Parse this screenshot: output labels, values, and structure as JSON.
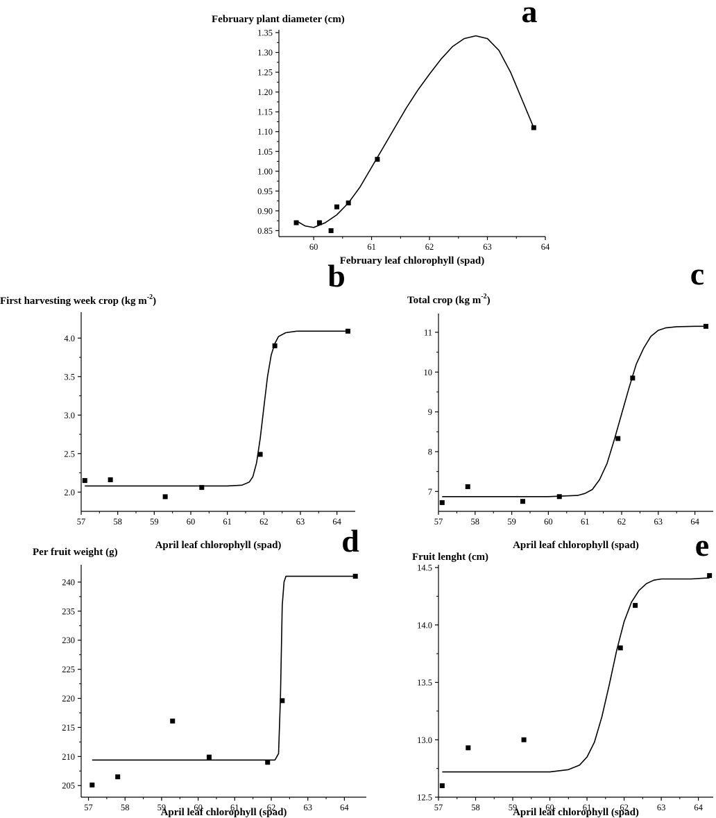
{
  "chart_data": [
    {
      "panel_label": "a",
      "type": "scatter",
      "title": "",
      "ylabel": "February plant diameter (cm)",
      "xlabel": "February leaf chlorophyll (spad)",
      "xlim": [
        59.4,
        64.0
      ],
      "ylim": [
        0.835,
        1.35
      ],
      "x_ticks": [
        60,
        61,
        62,
        63,
        64
      ],
      "x_tick_labels": [
        "60",
        "61",
        "62",
        "63",
        "64"
      ],
      "y_ticks": [
        0.85,
        0.9,
        0.95,
        1.0,
        1.05,
        1.1,
        1.15,
        1.2,
        1.25,
        1.3,
        1.35
      ],
      "y_tick_labels": [
        "0.85",
        "0.90",
        "0.95",
        "1.00",
        "1.05",
        "1.10",
        "1.15",
        "1.20",
        "1.25",
        "1.30",
        "1.35"
      ],
      "series": [
        {
          "mode": "markers",
          "x": [
            59.7,
            60.1,
            60.3,
            60.4,
            60.6,
            61.1,
            63.8
          ],
          "y": [
            0.87,
            0.87,
            0.85,
            0.91,
            0.92,
            1.03,
            1.11
          ]
        },
        {
          "mode": "line",
          "x": [
            59.7,
            59.85,
            60.0,
            60.2,
            60.4,
            60.6,
            60.8,
            61.0,
            61.2,
            61.4,
            61.6,
            61.8,
            62.0,
            62.2,
            62.4,
            62.6,
            62.8,
            63.0,
            63.2,
            63.4,
            63.6,
            63.8
          ],
          "y": [
            0.875,
            0.862,
            0.858,
            0.87,
            0.89,
            0.92,
            0.96,
            1.01,
            1.06,
            1.11,
            1.16,
            1.205,
            1.245,
            1.283,
            1.315,
            1.335,
            1.342,
            1.335,
            1.305,
            1.25,
            1.18,
            1.11
          ]
        }
      ]
    },
    {
      "panel_label": "b",
      "type": "scatter",
      "title": "",
      "ylabel": "First harvesting week crop (kg m",
      "ylabel_superscript": "-2",
      "ylabel_suffix": ")",
      "xlabel": "April leaf chlorophyll (spad)",
      "xlim": [
        57.0,
        64.5
      ],
      "ylim": [
        1.75,
        4.3
      ],
      "x_ticks": [
        57,
        58,
        59,
        60,
        61,
        62,
        63,
        64
      ],
      "x_tick_labels": [
        "57",
        "58",
        "59",
        "60",
        "61",
        "62",
        "63",
        "64"
      ],
      "y_ticks": [
        2.0,
        2.5,
        3.0,
        3.5,
        4.0
      ],
      "y_tick_labels": [
        "2.0",
        "2.5",
        "3.0",
        "3.5",
        "4.0"
      ],
      "series": [
        {
          "mode": "markers",
          "x": [
            57.1,
            57.8,
            59.3,
            60.3,
            61.9,
            62.3,
            64.3
          ],
          "y": [
            2.15,
            2.16,
            1.94,
            2.06,
            2.49,
            3.9,
            4.09
          ]
        },
        {
          "mode": "line",
          "x": [
            57.1,
            60.0,
            61.0,
            61.4,
            61.6,
            61.7,
            61.8,
            61.9,
            62.0,
            62.1,
            62.2,
            62.3,
            62.4,
            62.6,
            62.9,
            63.5,
            64.3
          ],
          "y": [
            2.08,
            2.08,
            2.08,
            2.09,
            2.13,
            2.2,
            2.38,
            2.7,
            3.1,
            3.5,
            3.78,
            3.93,
            4.02,
            4.07,
            4.09,
            4.09,
            4.09
          ]
        }
      ]
    },
    {
      "panel_label": "c",
      "type": "scatter",
      "title": "",
      "ylabel": "Total crop (kg m",
      "ylabel_superscript": "-2",
      "ylabel_suffix": ")",
      "xlabel": "April leaf chlorophyll (spad)",
      "xlim": [
        57.0,
        64.5
      ],
      "ylim": [
        6.5,
        11.4
      ],
      "x_ticks": [
        57,
        58,
        59,
        60,
        61,
        62,
        63,
        64
      ],
      "x_tick_labels": [
        "57",
        "58",
        "59",
        "60",
        "61",
        "62",
        "63",
        "64"
      ],
      "y_ticks": [
        7,
        8,
        9,
        10,
        11
      ],
      "y_tick_labels": [
        "7",
        "8",
        "9",
        "10",
        "11"
      ],
      "series": [
        {
          "mode": "markers",
          "x": [
            57.1,
            57.8,
            59.3,
            60.3,
            61.9,
            62.3,
            64.3
          ],
          "y": [
            6.72,
            7.12,
            6.75,
            6.87,
            8.33,
            9.85,
            11.15
          ]
        },
        {
          "mode": "line",
          "x": [
            57.1,
            60.0,
            60.8,
            61.0,
            61.2,
            61.4,
            61.6,
            61.8,
            62.0,
            62.2,
            62.4,
            62.6,
            62.8,
            63.0,
            63.2,
            63.5,
            64.0,
            64.3
          ],
          "y": [
            6.87,
            6.87,
            6.9,
            6.95,
            7.05,
            7.3,
            7.7,
            8.3,
            8.95,
            9.6,
            10.2,
            10.6,
            10.9,
            11.05,
            11.11,
            11.14,
            11.15,
            11.15
          ]
        }
      ]
    },
    {
      "panel_label": "d",
      "type": "scatter",
      "title": "",
      "ylabel": "Per fruit weight (g)",
      "xlabel": "April leaf chlorophyll (spad)",
      "xlim": [
        56.8,
        64.6
      ],
      "ylim": [
        203.0,
        242.5
      ],
      "x_ticks": [
        57,
        58,
        59,
        60,
        61,
        62,
        63,
        64
      ],
      "x_tick_labels": [
        "57",
        "58",
        "59",
        "60",
        "61",
        "62",
        "63",
        "64"
      ],
      "y_ticks": [
        205,
        210,
        215,
        220,
        225,
        230,
        235,
        240
      ],
      "y_tick_labels": [
        "205",
        "210",
        "215",
        "220",
        "225",
        "230",
        "235",
        "240"
      ],
      "series": [
        {
          "mode": "markers",
          "x": [
            57.1,
            57.8,
            59.3,
            60.3,
            61.9,
            62.3,
            64.3
          ],
          "y": [
            205.1,
            206.5,
            216.1,
            209.9,
            209.0,
            219.6,
            241.0
          ]
        },
        {
          "mode": "line",
          "x": [
            57.1,
            60.0,
            62.1,
            62.2,
            62.25,
            62.3,
            62.35,
            62.4,
            62.5,
            63.0,
            64.3
          ],
          "y": [
            209.4,
            209.4,
            209.4,
            210.5,
            220.0,
            236.0,
            240.0,
            241.0,
            241.0,
            241.0,
            241.0
          ]
        }
      ]
    },
    {
      "panel_label": "e",
      "type": "scatter",
      "title": "",
      "ylabel": "Fruit lenght (cm)",
      "xlabel": "April leaf chlorophyll (spad)",
      "xlim": [
        57.0,
        64.4
      ],
      "ylim": [
        12.5,
        14.5
      ],
      "x_ticks": [
        57,
        58,
        59,
        60,
        61,
        62,
        63,
        64
      ],
      "x_tick_labels": [
        "57",
        "58",
        "59",
        "60",
        "61",
        "62",
        "63",
        "64"
      ],
      "y_ticks": [
        12.5,
        13.0,
        13.5,
        14.0,
        14.5
      ],
      "y_tick_labels": [
        "12.5",
        "13.0",
        "13.5",
        "14.0",
        "14.5"
      ],
      "series": [
        {
          "mode": "markers",
          "x": [
            57.1,
            57.8,
            59.3,
            61.9,
            62.3,
            64.3
          ],
          "y": [
            12.6,
            12.93,
            13.0,
            13.8,
            14.17,
            14.43
          ]
        },
        {
          "mode": "line",
          "x": [
            57.1,
            60.0,
            60.5,
            60.8,
            61.0,
            61.2,
            61.4,
            61.6,
            61.8,
            62.0,
            62.2,
            62.4,
            62.6,
            62.8,
            63.0,
            63.3,
            63.8,
            64.3
          ],
          "y": [
            12.72,
            12.72,
            12.74,
            12.78,
            12.85,
            12.98,
            13.2,
            13.48,
            13.78,
            14.03,
            14.2,
            14.3,
            14.36,
            14.39,
            14.4,
            14.4,
            14.4,
            14.41
          ]
        }
      ]
    }
  ]
}
